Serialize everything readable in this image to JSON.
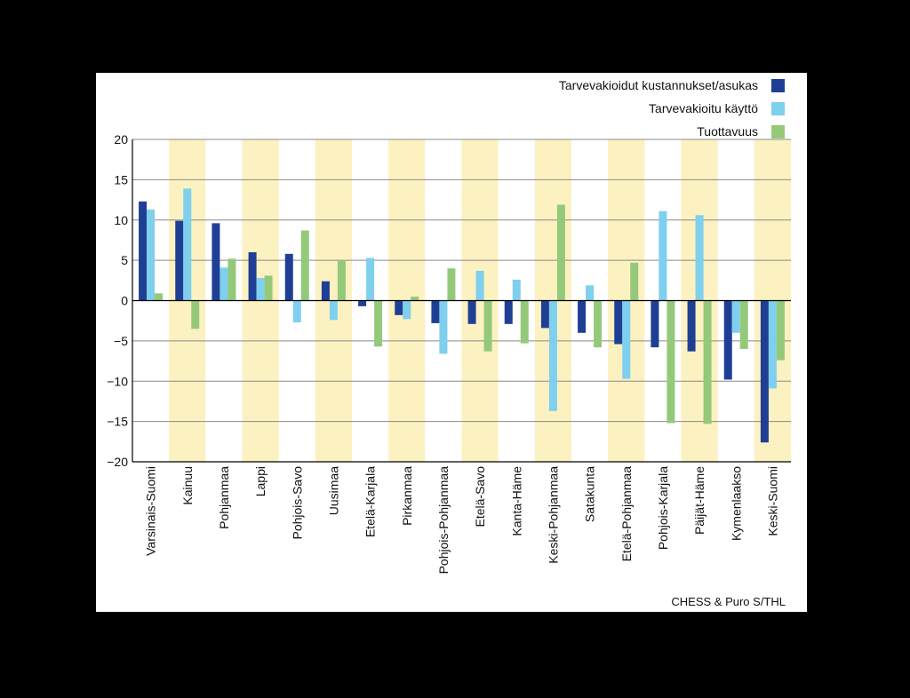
{
  "chart_data": {
    "type": "bar",
    "categories": [
      "Varsinais-Suomi",
      "Kainuu",
      "Pohjanmaa",
      "Lappi",
      "Pohjois-Savo",
      "Uusimaa",
      "Etelä-Karjala",
      "Pirkanmaa",
      "Pohjois-Pohjanmaa",
      "Etelä-Savo",
      "Kanta-Häme",
      "Keski-Pohjanmaa",
      "Satakunta",
      "Etelä-Pohjanmaa",
      "Pohjois-Karjala",
      "Päijät-Häme",
      "Kymenlaakso",
      "Keski-Suomi"
    ],
    "series": [
      {
        "name": "Tarvevakioidut kustannukset/asukas",
        "color": "#1f3f95",
        "values": [
          12.3,
          9.9,
          9.6,
          6.0,
          5.8,
          2.4,
          -0.7,
          -1.8,
          -2.8,
          -2.9,
          -2.9,
          -3.4,
          -4.0,
          -5.4,
          -5.8,
          -6.3,
          -9.8,
          -17.6
        ]
      },
      {
        "name": "Tarvevakioitu käyttö",
        "color": "#7fcfee",
        "values": [
          11.3,
          13.9,
          4.1,
          2.8,
          -2.7,
          -2.4,
          5.3,
          -2.3,
          -6.6,
          3.7,
          2.6,
          -13.7,
          1.9,
          -9.7,
          11.1,
          10.6,
          -4.0,
          -10.9
        ]
      },
      {
        "name": "Tuottavuus",
        "color": "#94c97a",
        "values": [
          0.9,
          -3.5,
          5.2,
          3.1,
          8.7,
          5.0,
          -5.7,
          0.5,
          4.0,
          -6.3,
          -5.3,
          11.9,
          -5.8,
          4.7,
          -15.2,
          -15.3,
          -6.0,
          -7.4
        ]
      }
    ],
    "ylim": [
      -20,
      20
    ],
    "yticks": [
      "20",
      "15",
      "10",
      "5",
      "0",
      "−5",
      "−10",
      "−15",
      "−20"
    ],
    "ytick_values": [
      20,
      15,
      10,
      5,
      0,
      -5,
      -10,
      -15,
      -20
    ],
    "grid": true,
    "legend_position": "top-right",
    "band_color": "#fcf1c0",
    "source": "CHESS & Puro S/THL"
  }
}
